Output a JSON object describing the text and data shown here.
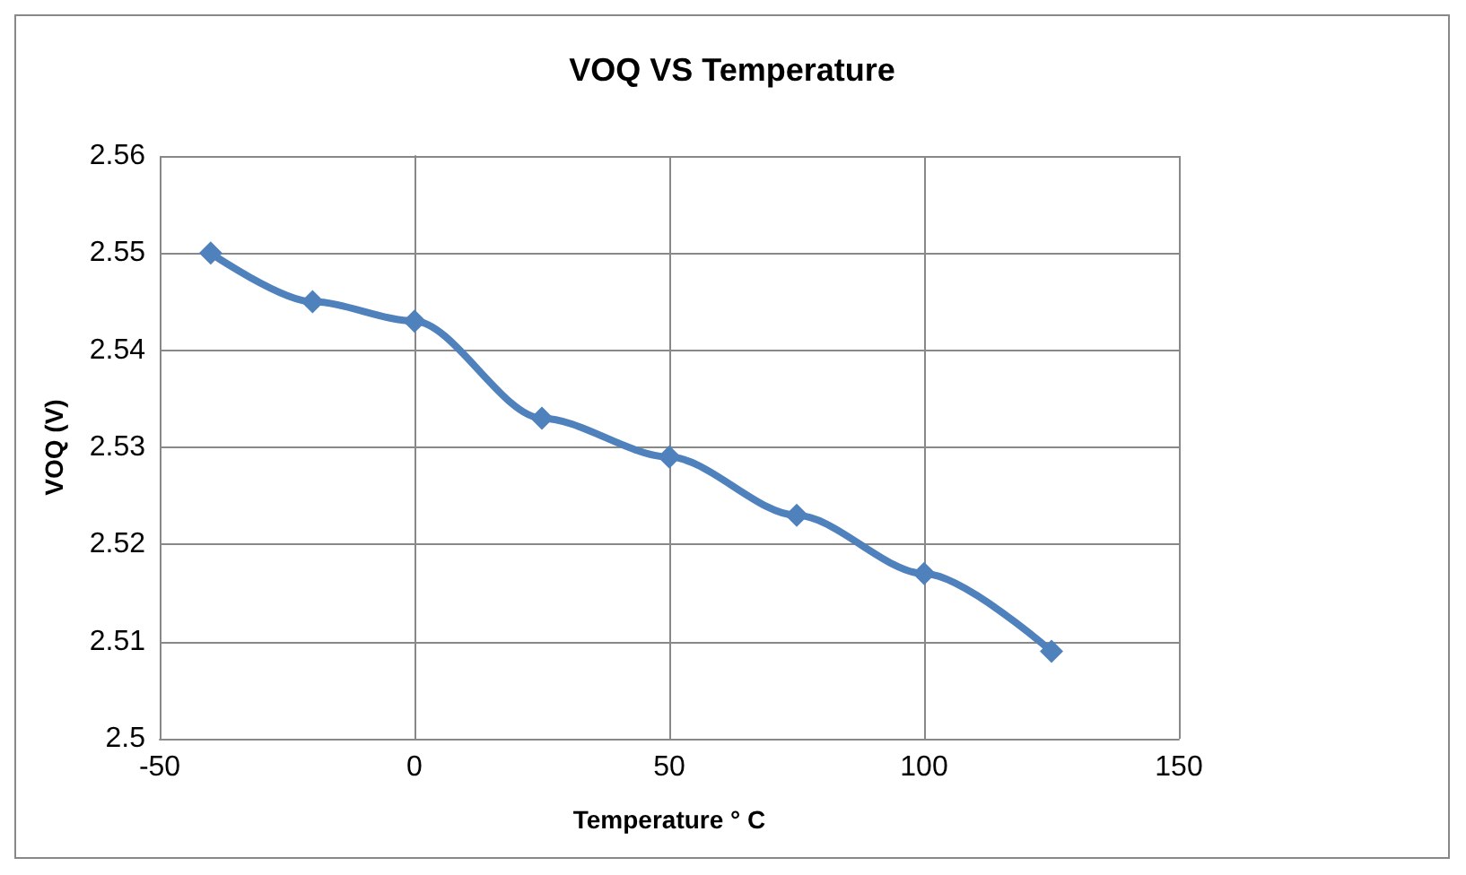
{
  "chart_data": {
    "type": "line",
    "title": "VOQ VS Temperature",
    "xlabel": "Temperature ° C",
    "ylabel": "VOQ (V)",
    "x": [
      -40,
      -20,
      0,
      25,
      50,
      75,
      100,
      125
    ],
    "series": [
      {
        "color": "#4f81bd",
        "values": [
          2.55,
          2.545,
          2.543,
          2.533,
          2.529,
          2.523,
          2.517,
          2.509
        ]
      }
    ],
    "xlim": [
      -50,
      150
    ],
    "xticks": [
      -50,
      0,
      50,
      100,
      150
    ],
    "ylim": [
      2.5,
      2.56
    ],
    "yticks": [
      2.5,
      2.51,
      2.52,
      2.53,
      2.54,
      2.55,
      2.56
    ],
    "grid": true,
    "marker": "diamond",
    "line_style": "solid"
  }
}
